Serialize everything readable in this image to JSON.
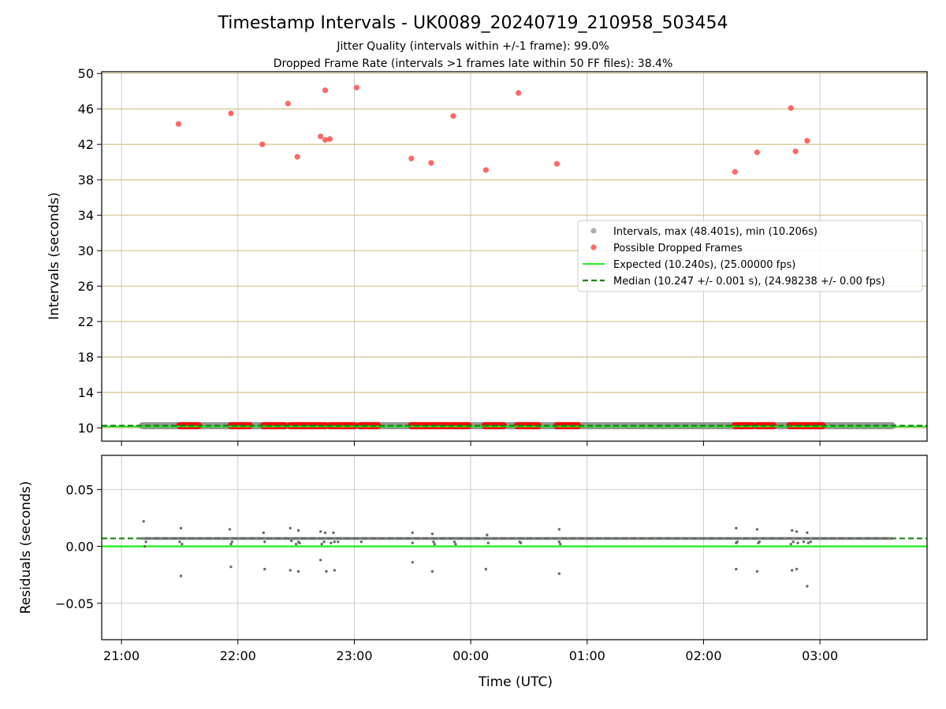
{
  "chart_data": [
    {
      "type": "scatter",
      "title": "Timestamp Intervals - UK0089_20240719_210958_503454",
      "subtitles": [
        "Jitter Quality (intervals within +/-1 frame): 99.0%",
        "Dropped Frame Rate (intervals >1 frames late within 50 FF files): 38.4%"
      ],
      "xlabel": "",
      "ylabel": "Intervals (seconds)",
      "x_unit": "hours since 21:00 UTC (axis spans past midnight)",
      "xlim": [
        -0.17,
        6.92
      ],
      "ylim": [
        8.5,
        50.2
      ],
      "yticks": [
        10,
        14,
        18,
        22,
        26,
        30,
        34,
        38,
        42,
        46,
        50
      ],
      "horizontal_grid_color": "#d4c48e",
      "vertical_grid_color": "#cccccc",
      "legend": {
        "position": "center-right",
        "entries": [
          {
            "label": "Intervals, max (48.401s), min (10.206s)",
            "color": "#a0a0a0",
            "marker": "circle"
          },
          {
            "label": "Possible Dropped Frames",
            "color": "#ff4d4d",
            "marker": "circle"
          },
          {
            "label": "Expected (10.240s), (25.00000 fps)",
            "color": "#22ee22",
            "marker": "line"
          },
          {
            "label": "Median (10.247 +/- 0.001 s), (24.98238 +/- 0.00 fps)",
            "color": "#118811",
            "marker": "dashed-line"
          }
        ]
      },
      "series": [
        {
          "name": "Intervals, max (48.401s), min (10.206s)",
          "kind": "band",
          "x_range": [
            0.18,
            6.62
          ],
          "y": 10.247,
          "color": "#8a8a8a"
        },
        {
          "name": "Possible Dropped Frames",
          "kind": "points",
          "color": "#ff4d4d",
          "x": [
            0.49,
            0.94,
            1.21,
            1.43,
            1.51,
            1.71,
            1.75,
            1.79,
            1.75,
            2.02,
            2.49,
            2.66,
            2.85,
            3.13,
            3.41,
            3.74,
            5.27,
            5.46,
            5.75,
            5.79,
            5.89
          ],
          "y": [
            44.3,
            45.5,
            42.0,
            46.6,
            40.6,
            42.9,
            42.5,
            42.6,
            48.1,
            48.4,
            40.4,
            39.9,
            45.2,
            39.1,
            47.8,
            39.8,
            38.9,
            41.1,
            46.1,
            41.2,
            42.4
          ]
        },
        {
          "name": "Possible Dropped Frames (near median)",
          "kind": "clusters",
          "color": "#ff0000",
          "y": 10.25,
          "ranges": [
            [
              0.5,
              0.66
            ],
            [
              0.94,
              1.1
            ],
            [
              1.22,
              1.4
            ],
            [
              1.45,
              1.72
            ],
            [
              1.74,
              1.75
            ],
            [
              1.79,
              2.0
            ],
            [
              2.05,
              2.2
            ],
            [
              2.49,
              2.8
            ],
            [
              2.82,
              2.98
            ],
            [
              3.12,
              3.28
            ],
            [
              3.4,
              3.58
            ],
            [
              3.74,
              3.92
            ],
            [
              5.27,
              5.42
            ],
            [
              5.46,
              5.6
            ],
            [
              5.74,
              6.02
            ]
          ]
        },
        {
          "name": "Expected (10.240s), (25.00000 fps)",
          "kind": "hline",
          "y": 10.24,
          "color": "#22ee22"
        },
        {
          "name": "Median (10.247 +/- 0.001 s), (24.98238 +/- 0.00 fps)",
          "kind": "hline-dashed",
          "y": 10.247,
          "color": "#118811"
        }
      ]
    },
    {
      "type": "scatter",
      "title": "",
      "xlabel": "Time (UTC)",
      "ylabel": "Residuals (seconds)",
      "x_unit": "hours since 21:00 UTC (axis spans past midnight)",
      "xlim": [
        -0.17,
        6.92
      ],
      "ylim": [
        -0.082,
        0.08
      ],
      "xticks": [
        0,
        1,
        2,
        3,
        4,
        5,
        6
      ],
      "xtick_labels": [
        "21:00",
        "22:00",
        "23:00",
        "00:00",
        "01:00",
        "02:00",
        "03:00"
      ],
      "yticks": [
        0.05,
        0.0,
        -0.05
      ],
      "ytick_labels": [
        "0.05",
        "0.00",
        "−0.05"
      ],
      "series": [
        {
          "name": "Expected",
          "kind": "hline",
          "y": 0.0,
          "color": "#22ee22"
        },
        {
          "name": "Median",
          "kind": "hline-dashed",
          "y": 0.007,
          "color": "#118811"
        },
        {
          "name": "Residuals band",
          "kind": "band",
          "x_range": [
            0.18,
            6.62
          ],
          "y": 0.007,
          "color": "#6a6a6a"
        },
        {
          "name": "Residuals",
          "kind": "points",
          "color": "#6a6a6a",
          "x": [
            0.19,
            0.51,
            0.93,
            1.22,
            1.45,
            1.52,
            1.71,
            1.75,
            1.82,
            2.5,
            2.67,
            3.14,
            3.76,
            5.28,
            5.46,
            5.76,
            5.8,
            5.89,
            0.2,
            0.21,
            0.5,
            0.52,
            0.94,
            0.95,
            1.23,
            1.46,
            1.5,
            1.52,
            1.53,
            1.72,
            1.74,
            1.8,
            1.83,
            1.86,
            2.06,
            2.5,
            2.68,
            2.69,
            2.86,
            2.87,
            3.15,
            3.42,
            3.43,
            3.76,
            3.77,
            5.28,
            5.29,
            5.47,
            5.48,
            5.75,
            5.77,
            5.81,
            5.86,
            5.9,
            5.92
          ],
          "y": [
            0.022,
            0.016,
            0.015,
            0.012,
            0.016,
            0.014,
            0.013,
            0.012,
            0.012,
            0.012,
            0.011,
            0.01,
            0.015,
            0.016,
            0.015,
            0.014,
            0.013,
            0.012,
            0.0,
            0.004,
            0.004,
            0.002,
            0.002,
            0.004,
            0.004,
            0.005,
            0.002,
            0.004,
            0.003,
            0.002,
            0.004,
            0.003,
            0.004,
            0.004,
            0.004,
            0.003,
            0.004,
            0.002,
            0.004,
            0.002,
            0.003,
            0.004,
            0.003,
            0.004,
            0.002,
            0.003,
            0.004,
            0.003,
            0.004,
            0.002,
            0.004,
            0.003,
            0.004,
            0.003,
            0.004
          ]
        },
        {
          "name": "Residual outliers (negative)",
          "kind": "points",
          "color": "#6a6a6a",
          "x": [
            0.51,
            0.94,
            1.23,
            1.45,
            1.52,
            1.71,
            1.76,
            1.83,
            2.5,
            2.67,
            3.13,
            3.76,
            5.28,
            5.46,
            5.76,
            5.8,
            5.89
          ],
          "y": [
            -0.026,
            -0.018,
            -0.02,
            -0.021,
            -0.022,
            -0.012,
            -0.022,
            -0.021,
            -0.014,
            -0.022,
            -0.02,
            -0.024,
            -0.02,
            -0.022,
            -0.021,
            -0.02,
            -0.035
          ]
        }
      ]
    }
  ]
}
